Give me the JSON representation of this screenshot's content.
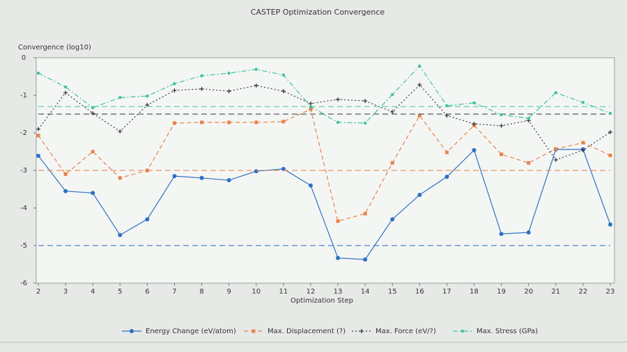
{
  "chart_data": {
    "type": "line",
    "title": "CASTEP Optimization Convergence",
    "y_label": "Convergence (log10)",
    "x_label": "Optimization Step",
    "x": [
      2,
      3,
      4,
      5,
      6,
      7,
      8,
      9,
      10,
      11,
      12,
      13,
      14,
      15,
      16,
      17,
      18,
      19,
      20,
      21,
      22,
      23
    ],
    "xlim": [
      2,
      23
    ],
    "xticks": [
      2,
      3,
      4,
      5,
      6,
      7,
      8,
      9,
      10,
      11,
      12,
      13,
      14,
      15,
      16,
      17,
      18,
      19,
      20,
      21,
      22,
      23
    ],
    "ylim": [
      -6,
      0
    ],
    "yticks": [
      0,
      -1,
      -2,
      -3,
      -4,
      -5,
      -6
    ],
    "series": [
      {
        "name": "Energy Change (eV/atom)",
        "color": "#2f6fc4",
        "style": "solid",
        "marker": "circle",
        "threshold": -5.0,
        "values": [
          -2.61,
          -3.55,
          -3.6,
          -4.72,
          -4.3,
          -3.15,
          -3.2,
          -3.26,
          -3.02,
          -2.96,
          -3.4,
          -5.33,
          -5.37,
          -4.3,
          -3.65,
          -3.17,
          -2.46,
          -4.69,
          -4.65,
          -2.44,
          -2.44,
          -4.44
        ]
      },
      {
        "name": "Max. Displacement (?)",
        "color": "#e8834a",
        "style": "dashed",
        "marker": "square",
        "threshold": -3.0,
        "values": [
          -2.07,
          -3.1,
          -2.5,
          -3.2,
          -3.0,
          -1.74,
          -1.72,
          -1.72,
          -1.72,
          -1.7,
          -1.37,
          -4.35,
          -4.15,
          -2.8,
          -1.54,
          -2.52,
          -1.8,
          -2.57,
          -2.8,
          -2.43,
          -2.26,
          -2.6
        ]
      },
      {
        "name": "Max. Force (eV/?)",
        "color": "#3a3a4a",
        "style": "dotted",
        "marker": "plus",
        "threshold": -1.5,
        "values": [
          -1.9,
          -0.93,
          -1.48,
          -1.96,
          -1.26,
          -0.87,
          -0.83,
          -0.89,
          -0.74,
          -0.89,
          -1.22,
          -1.11,
          -1.15,
          -1.44,
          -0.72,
          -1.54,
          -1.76,
          -1.81,
          -1.67,
          -2.72,
          -2.46,
          -1.98
        ]
      },
      {
        "name": "Max. Stress (GPa)",
        "color": "#3cc49a",
        "style": "dashdot",
        "marker": "dot",
        "threshold": -1.3,
        "values": [
          -0.41,
          -0.78,
          -1.33,
          -1.06,
          -1.02,
          -0.69,
          -0.48,
          -0.41,
          -0.31,
          -0.46,
          -1.3,
          -1.72,
          -1.74,
          -0.98,
          -0.22,
          -1.28,
          -1.2,
          -1.52,
          -1.61,
          -0.93,
          -1.19,
          -1.48
        ]
      }
    ]
  }
}
